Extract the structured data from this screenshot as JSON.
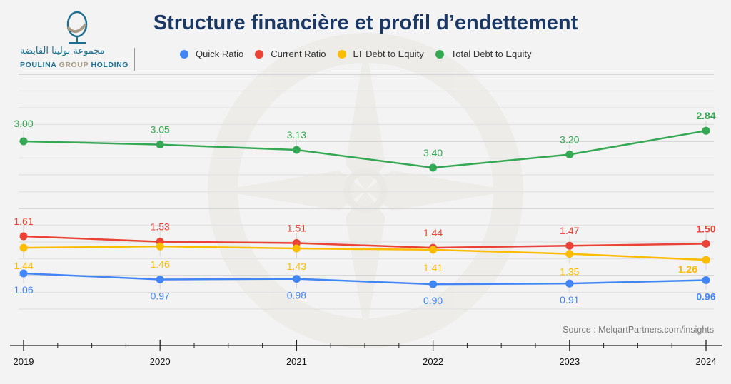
{
  "header": {
    "title": "Structure financière et profil d’endettement",
    "logo_arabic": "مجموعة بولينا القابضة",
    "logo_en_1": "Poulina",
    "logo_en_2": "Group",
    "logo_en_3": "Holding"
  },
  "source": "Source : MelqartPartners.com/insights",
  "colors": {
    "quick": "#4285f4",
    "current": "#ea4335",
    "lt": "#fbbc04",
    "total": "#34a853",
    "title": "#1b3763"
  },
  "chart_data": {
    "type": "line",
    "title": "Structure financière et profil d’endettement",
    "xlabel": "",
    "ylabel": "",
    "x": [
      "2019",
      "2020",
      "2021",
      "2022",
      "2023",
      "2024"
    ],
    "legend_position": "top",
    "grid": true,
    "series": [
      {
        "name": "Quick Ratio",
        "key": "quick",
        "values": [
          1.06,
          0.97,
          0.98,
          0.9,
          0.91,
          0.96
        ],
        "labels": [
          "1.06",
          "0.97",
          "0.98",
          "0.90",
          "0.91",
          "0.96"
        ]
      },
      {
        "name": "Current Ratio",
        "key": "current",
        "values": [
          1.61,
          1.53,
          1.51,
          1.44,
          1.47,
          1.5
        ],
        "labels": [
          "1.61",
          "1.53",
          "1.51",
          "1.44",
          "1.47",
          "1.50"
        ]
      },
      {
        "name": "LT Debt to Equity",
        "key": "lt",
        "values": [
          1.44,
          1.46,
          1.43,
          1.41,
          1.35,
          1.26
        ],
        "labels": [
          "1.44",
          "1.46",
          "1.43",
          "1.41",
          "1.35",
          "1.26"
        ]
      },
      {
        "name": "Total Debt to Equity",
        "key": "total",
        "values": [
          3.0,
          3.05,
          3.13,
          3.4,
          3.2,
          2.84
        ],
        "labels": [
          "3.00",
          "3.05",
          "3.13",
          "3.40",
          "3.20",
          "2.84"
        ]
      }
    ]
  }
}
